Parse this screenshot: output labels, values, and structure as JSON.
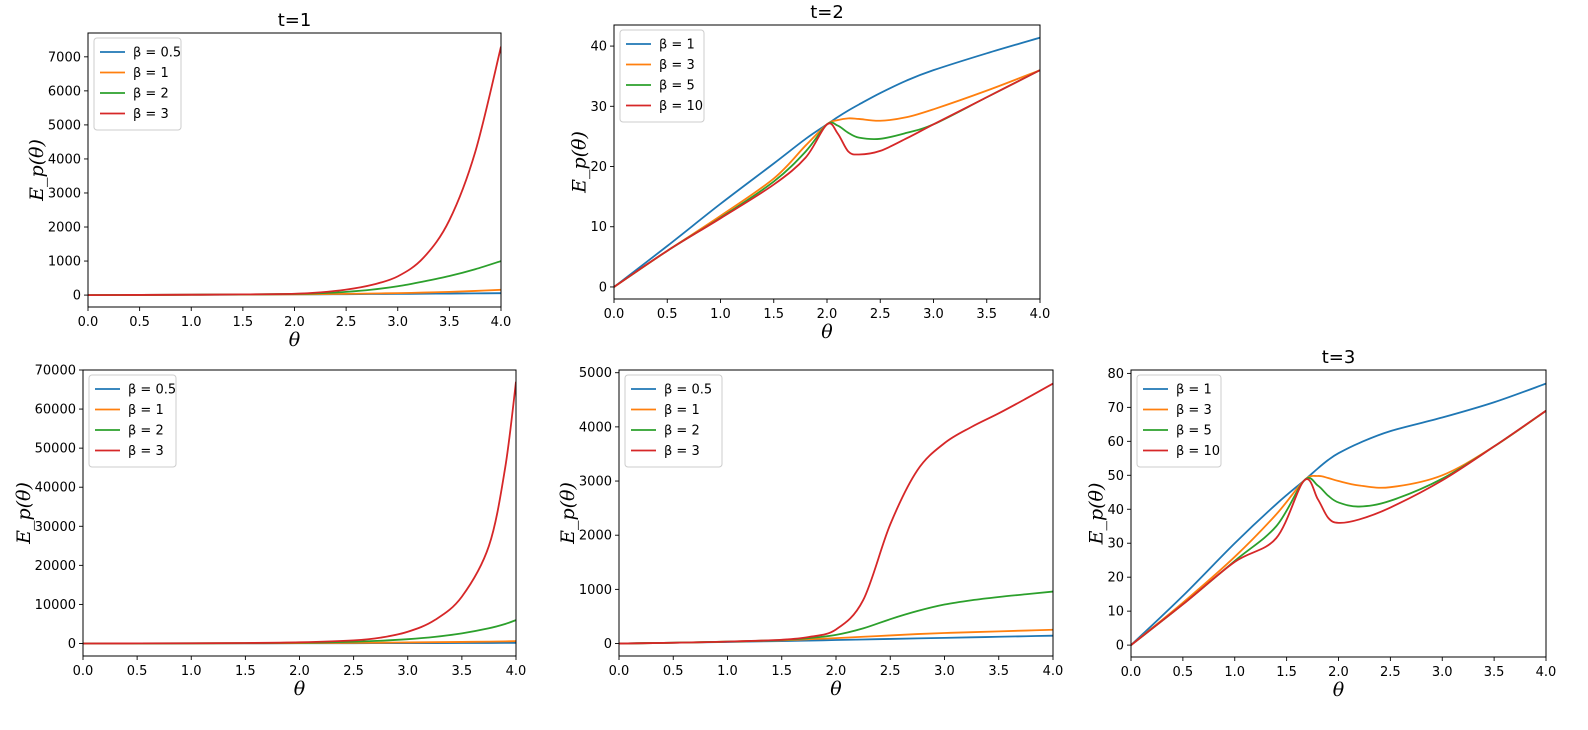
{
  "colors": {
    "blue": "#1f77b4",
    "orange": "#ff7f0e",
    "green": "#2ca02c",
    "red": "#d62728"
  },
  "chart_data": [
    {
      "type": "line",
      "title": "t=1",
      "xlabel": "θ",
      "ylabel": "E_p(θ)",
      "xlim": [
        0,
        4
      ],
      "ylim": [
        -350,
        7700
      ],
      "xticks": [
        "0.0",
        "0.5",
        "1.0",
        "1.5",
        "2.0",
        "2.5",
        "3.0",
        "3.5",
        "4.0"
      ],
      "yticks": [
        "0",
        "1000",
        "2000",
        "3000",
        "4000",
        "5000",
        "6000",
        "7000"
      ],
      "x": [
        0,
        0.5,
        1.0,
        1.5,
        2.0,
        2.25,
        2.5,
        2.75,
        3.0,
        3.25,
        3.5,
        3.75,
        4.0
      ],
      "series": [
        {
          "name": "β = 0.5",
          "color": "#1f77b4",
          "values": [
            0,
            4,
            9,
            14,
            20,
            23,
            27,
            31,
            35,
            40,
            45,
            50,
            56
          ]
        },
        {
          "name": "β = 1",
          "color": "#ff7f0e",
          "values": [
            0,
            4,
            9,
            15,
            22,
            28,
            36,
            46,
            58,
            74,
            95,
            122,
            155
          ]
        },
        {
          "name": "β = 2",
          "color": "#2ca02c",
          "values": [
            0,
            4,
            10,
            18,
            33,
            55,
            95,
            160,
            260,
            400,
            560,
            760,
            1000
          ]
        },
        {
          "name": "β = 3",
          "color": "#d62728",
          "values": [
            0,
            5,
            11,
            20,
            40,
            80,
            160,
            300,
            550,
            1100,
            2200,
            4200,
            7300
          ]
        }
      ]
    },
    {
      "type": "line",
      "title": "t=2",
      "xlabel": "θ",
      "ylabel": "E_p(θ)",
      "xlim": [
        0,
        4
      ],
      "ylim": [
        -2,
        43.5
      ],
      "xticks": [
        "0.0",
        "0.5",
        "1.0",
        "1.5",
        "2.0",
        "2.5",
        "3.0",
        "3.5",
        "4.0"
      ],
      "yticks": [
        "0",
        "10",
        "20",
        "30",
        "40"
      ],
      "x": [
        0,
        0.5,
        1.0,
        1.5,
        1.8,
        2.0,
        2.1,
        2.2,
        2.3,
        2.5,
        2.75,
        3.0,
        3.5,
        4.0
      ],
      "series": [
        {
          "name": "β = 1",
          "color": "#1f77b4",
          "values": [
            0,
            6.8,
            13.8,
            20.5,
            24.6,
            27,
            28.2,
            29.3,
            30.3,
            32.2,
            34.3,
            36,
            38.8,
            41.4
          ]
        },
        {
          "name": "β = 3",
          "color": "#ff7f0e",
          "values": [
            0,
            6,
            11.8,
            18,
            23.5,
            27,
            27.7,
            28,
            27.9,
            27.6,
            28.2,
            29.5,
            32.6,
            36
          ]
        },
        {
          "name": "β = 5",
          "color": "#2ca02c",
          "values": [
            0,
            6,
            11.5,
            17.5,
            22.5,
            27,
            26.8,
            25.6,
            24.8,
            24.6,
            25.6,
            27,
            31.5,
            36
          ]
        },
        {
          "name": "β = 10",
          "color": "#d62728",
          "values": [
            0,
            6,
            11.4,
            17,
            21.5,
            27,
            25.5,
            22.5,
            22,
            22.6,
            24.7,
            27,
            31.5,
            36
          ]
        }
      ]
    },
    {
      "type": "line",
      "title": "",
      "xlabel": "θ",
      "ylabel": "E_p(θ)",
      "xlim": [
        0,
        4
      ],
      "ylim": [
        -3200,
        70000
      ],
      "xticks": [
        "0.0",
        "0.5",
        "1.0",
        "1.5",
        "2.0",
        "2.5",
        "3.0",
        "3.5",
        "4.0"
      ],
      "yticks": [
        "0",
        "10000",
        "20000",
        "30000",
        "40000",
        "50000",
        "60000",
        "70000"
      ],
      "x": [
        0,
        0.5,
        1.0,
        1.5,
        2.0,
        2.5,
        2.75,
        3.0,
        3.25,
        3.5,
        3.75,
        3.9,
        4.0
      ],
      "series": [
        {
          "name": "β = 0.5",
          "color": "#1f77b4",
          "values": [
            0,
            10,
            25,
            40,
            60,
            80,
            90,
            100,
            110,
            125,
            140,
            150,
            160
          ]
        },
        {
          "name": "β = 1",
          "color": "#ff7f0e",
          "values": [
            0,
            15,
            35,
            60,
            100,
            160,
            210,
            270,
            330,
            400,
            480,
            540,
            600
          ]
        },
        {
          "name": "β = 2",
          "color": "#2ca02c",
          "values": [
            0,
            20,
            50,
            100,
            200,
            450,
            700,
            1100,
            1700,
            2600,
            3900,
            5000,
            6000
          ]
        },
        {
          "name": "β = 3",
          "color": "#d62728",
          "values": [
            0,
            25,
            60,
            120,
            300,
            800,
            1500,
            3000,
            6000,
            12000,
            25000,
            45000,
            67000
          ]
        }
      ]
    },
    {
      "type": "line",
      "title": "",
      "xlabel": "θ",
      "ylabel": "E_p(θ)",
      "xlim": [
        0,
        4
      ],
      "ylim": [
        -230,
        5050
      ],
      "xticks": [
        "0.0",
        "0.5",
        "1.0",
        "1.5",
        "2.0",
        "2.5",
        "3.0",
        "3.5",
        "4.0"
      ],
      "yticks": [
        "0",
        "1000",
        "2000",
        "3000",
        "4000",
        "5000"
      ],
      "x": [
        0,
        0.5,
        1.0,
        1.5,
        1.75,
        2.0,
        2.25,
        2.5,
        2.75,
        3.0,
        3.25,
        3.5,
        3.75,
        4.0
      ],
      "series": [
        {
          "name": "β = 0.5",
          "color": "#1f77b4",
          "values": [
            0,
            15,
            30,
            45,
            55,
            65,
            75,
            85,
            95,
            105,
            115,
            125,
            135,
            145
          ]
        },
        {
          "name": "β = 1",
          "color": "#ff7f0e",
          "values": [
            0,
            15,
            35,
            60,
            80,
            100,
            125,
            150,
            175,
            195,
            210,
            225,
            240,
            255
          ]
        },
        {
          "name": "β = 2",
          "color": "#2ca02c",
          "values": [
            0,
            15,
            35,
            65,
            100,
            160,
            280,
            450,
            600,
            720,
            800,
            860,
            910,
            960
          ]
        },
        {
          "name": "β = 3",
          "color": "#d62728",
          "values": [
            0,
            15,
            35,
            70,
            120,
            260,
            800,
            2200,
            3200,
            3700,
            4000,
            4250,
            4520,
            4800
          ]
        }
      ]
    },
    {
      "type": "line",
      "title": "t=3",
      "xlabel": "θ",
      "ylabel": "E_p(θ)",
      "xlim": [
        0,
        4
      ],
      "ylim": [
        -3.5,
        81
      ],
      "xticks": [
        "0.0",
        "0.5",
        "1.0",
        "1.5",
        "2.0",
        "2.5",
        "3.0",
        "3.5",
        "4.0"
      ],
      "yticks": [
        "0",
        "10",
        "20",
        "30",
        "40",
        "50",
        "60",
        "70",
        "80"
      ],
      "x": [
        0,
        0.5,
        1.0,
        1.4,
        1.67,
        1.8,
        1.9,
        2.0,
        2.2,
        2.5,
        3.0,
        3.5,
        4.0
      ],
      "series": [
        {
          "name": "β = 1",
          "color": "#1f77b4",
          "values": [
            0,
            14.5,
            30,
            41.5,
            48.5,
            52,
            54.5,
            56.5,
            59.5,
            63,
            67,
            71.5,
            77
          ]
        },
        {
          "name": "β = 3",
          "color": "#ff7f0e",
          "values": [
            0,
            12.5,
            26,
            38.5,
            48.5,
            49.8,
            49.2,
            48.3,
            47,
            46.5,
            50,
            58.5,
            69
          ]
        },
        {
          "name": "β = 5",
          "color": "#2ca02c",
          "values": [
            0,
            12,
            24.8,
            35,
            48.5,
            47,
            44,
            42,
            40.8,
            42.5,
            49,
            58.5,
            69
          ]
        },
        {
          "name": "β = 10",
          "color": "#d62728",
          "values": [
            0,
            12,
            24.5,
            31.5,
            48.5,
            43,
            37.5,
            36,
            37,
            40.5,
            48.5,
            58.5,
            69
          ]
        }
      ]
    }
  ]
}
